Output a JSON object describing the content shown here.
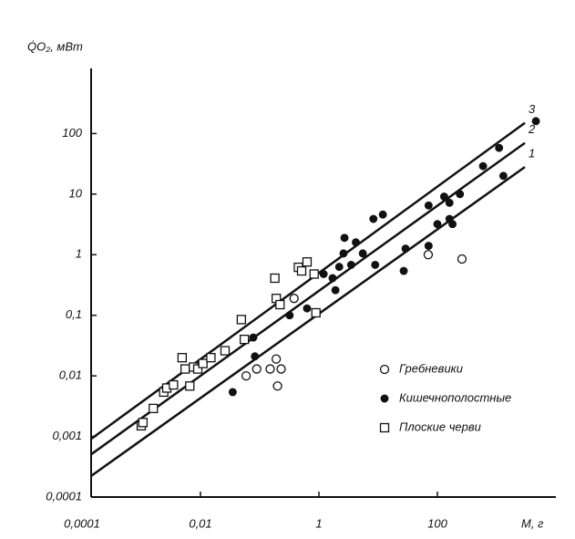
{
  "chart_data": {
    "type": "scatter",
    "y_label": "Q̇O₂, мВт",
    "x_label": "M, г",
    "log_x": true,
    "log_y": true,
    "xlim": [
      0.0001,
      10000
    ],
    "ylim": [
      0.0001,
      1000
    ],
    "xticks": [
      {
        "value": 0.0001,
        "label": "0,0001"
      },
      {
        "value": 0.01,
        "label": "0,01"
      },
      1,
      100
    ],
    "yticks": [
      {
        "value": 0.0001,
        "label": "0,0001"
      },
      {
        "value": 0.001,
        "label": "0,001"
      },
      {
        "value": 0.01,
        "label": "0,01"
      },
      {
        "value": 0.1,
        "label": "0,1"
      },
      1,
      10,
      100
    ],
    "series": [
      {
        "name": "Гребневики",
        "marker": "open-circle",
        "color": "#111111",
        "x": [
          0.059,
          0.089,
          0.15,
          0.19,
          0.2,
          0.23,
          0.38,
          70,
          260
        ],
        "values": [
          0.01,
          0.013,
          0.013,
          0.019,
          0.0068,
          0.013,
          0.19,
          1.0,
          0.85
        ]
      },
      {
        "name": "Кишечнополостные",
        "marker": "filled-circle",
        "color": "#111111",
        "x": [
          0.035,
          0.083,
          0.078,
          0.32,
          0.63,
          1.2,
          1.7,
          1.9,
          2.2,
          2.6,
          3.5,
          2.7,
          4.2,
          5.5,
          8.3,
          12,
          8.9,
          27,
          29,
          71,
          71,
          100,
          130,
          160,
          180,
          160,
          240,
          590,
          1100,
          1300,
          4600
        ],
        "values": [
          0.0054,
          0.021,
          0.043,
          0.1,
          0.13,
          0.48,
          0.41,
          0.26,
          0.63,
          1.05,
          0.68,
          1.9,
          1.6,
          1.05,
          3.9,
          4.6,
          0.68,
          0.54,
          1.26,
          6.5,
          1.4,
          3.2,
          9.1,
          3.9,
          3.2,
          7.2,
          10,
          29,
          58,
          20,
          160
        ]
      },
      {
        "name": "Плоские черви",
        "marker": "open-square",
        "color": "#111111",
        "x": [
          0.001,
          0.00107,
          0.0016,
          0.0024,
          0.0027,
          0.0035,
          0.0049,
          0.0055,
          0.0066,
          0.0076,
          0.009,
          0.011,
          0.015,
          0.026,
          0.049,
          0.055,
          0.18,
          0.19,
          0.22,
          0.45,
          0.51,
          0.63,
          0.83,
          0.89
        ],
        "values": [
          0.0015,
          0.0017,
          0.0029,
          0.0054,
          0.0063,
          0.0071,
          0.02,
          0.013,
          0.0068,
          0.014,
          0.013,
          0.016,
          0.02,
          0.026,
          0.085,
          0.04,
          0.41,
          0.19,
          0.15,
          0.62,
          0.54,
          0.76,
          0.48,
          0.11
        ]
      }
    ],
    "lines": [
      {
        "name": "1",
        "x": [
          0.00014,
          3000
        ],
        "values": [
          0.00022,
          28
        ]
      },
      {
        "name": "2",
        "x": [
          0.00014,
          3000
        ],
        "values": [
          0.0005,
          70
        ]
      },
      {
        "name": "3",
        "x": [
          0.00014,
          3000
        ],
        "values": [
          0.0009,
          150
        ]
      }
    ]
  }
}
